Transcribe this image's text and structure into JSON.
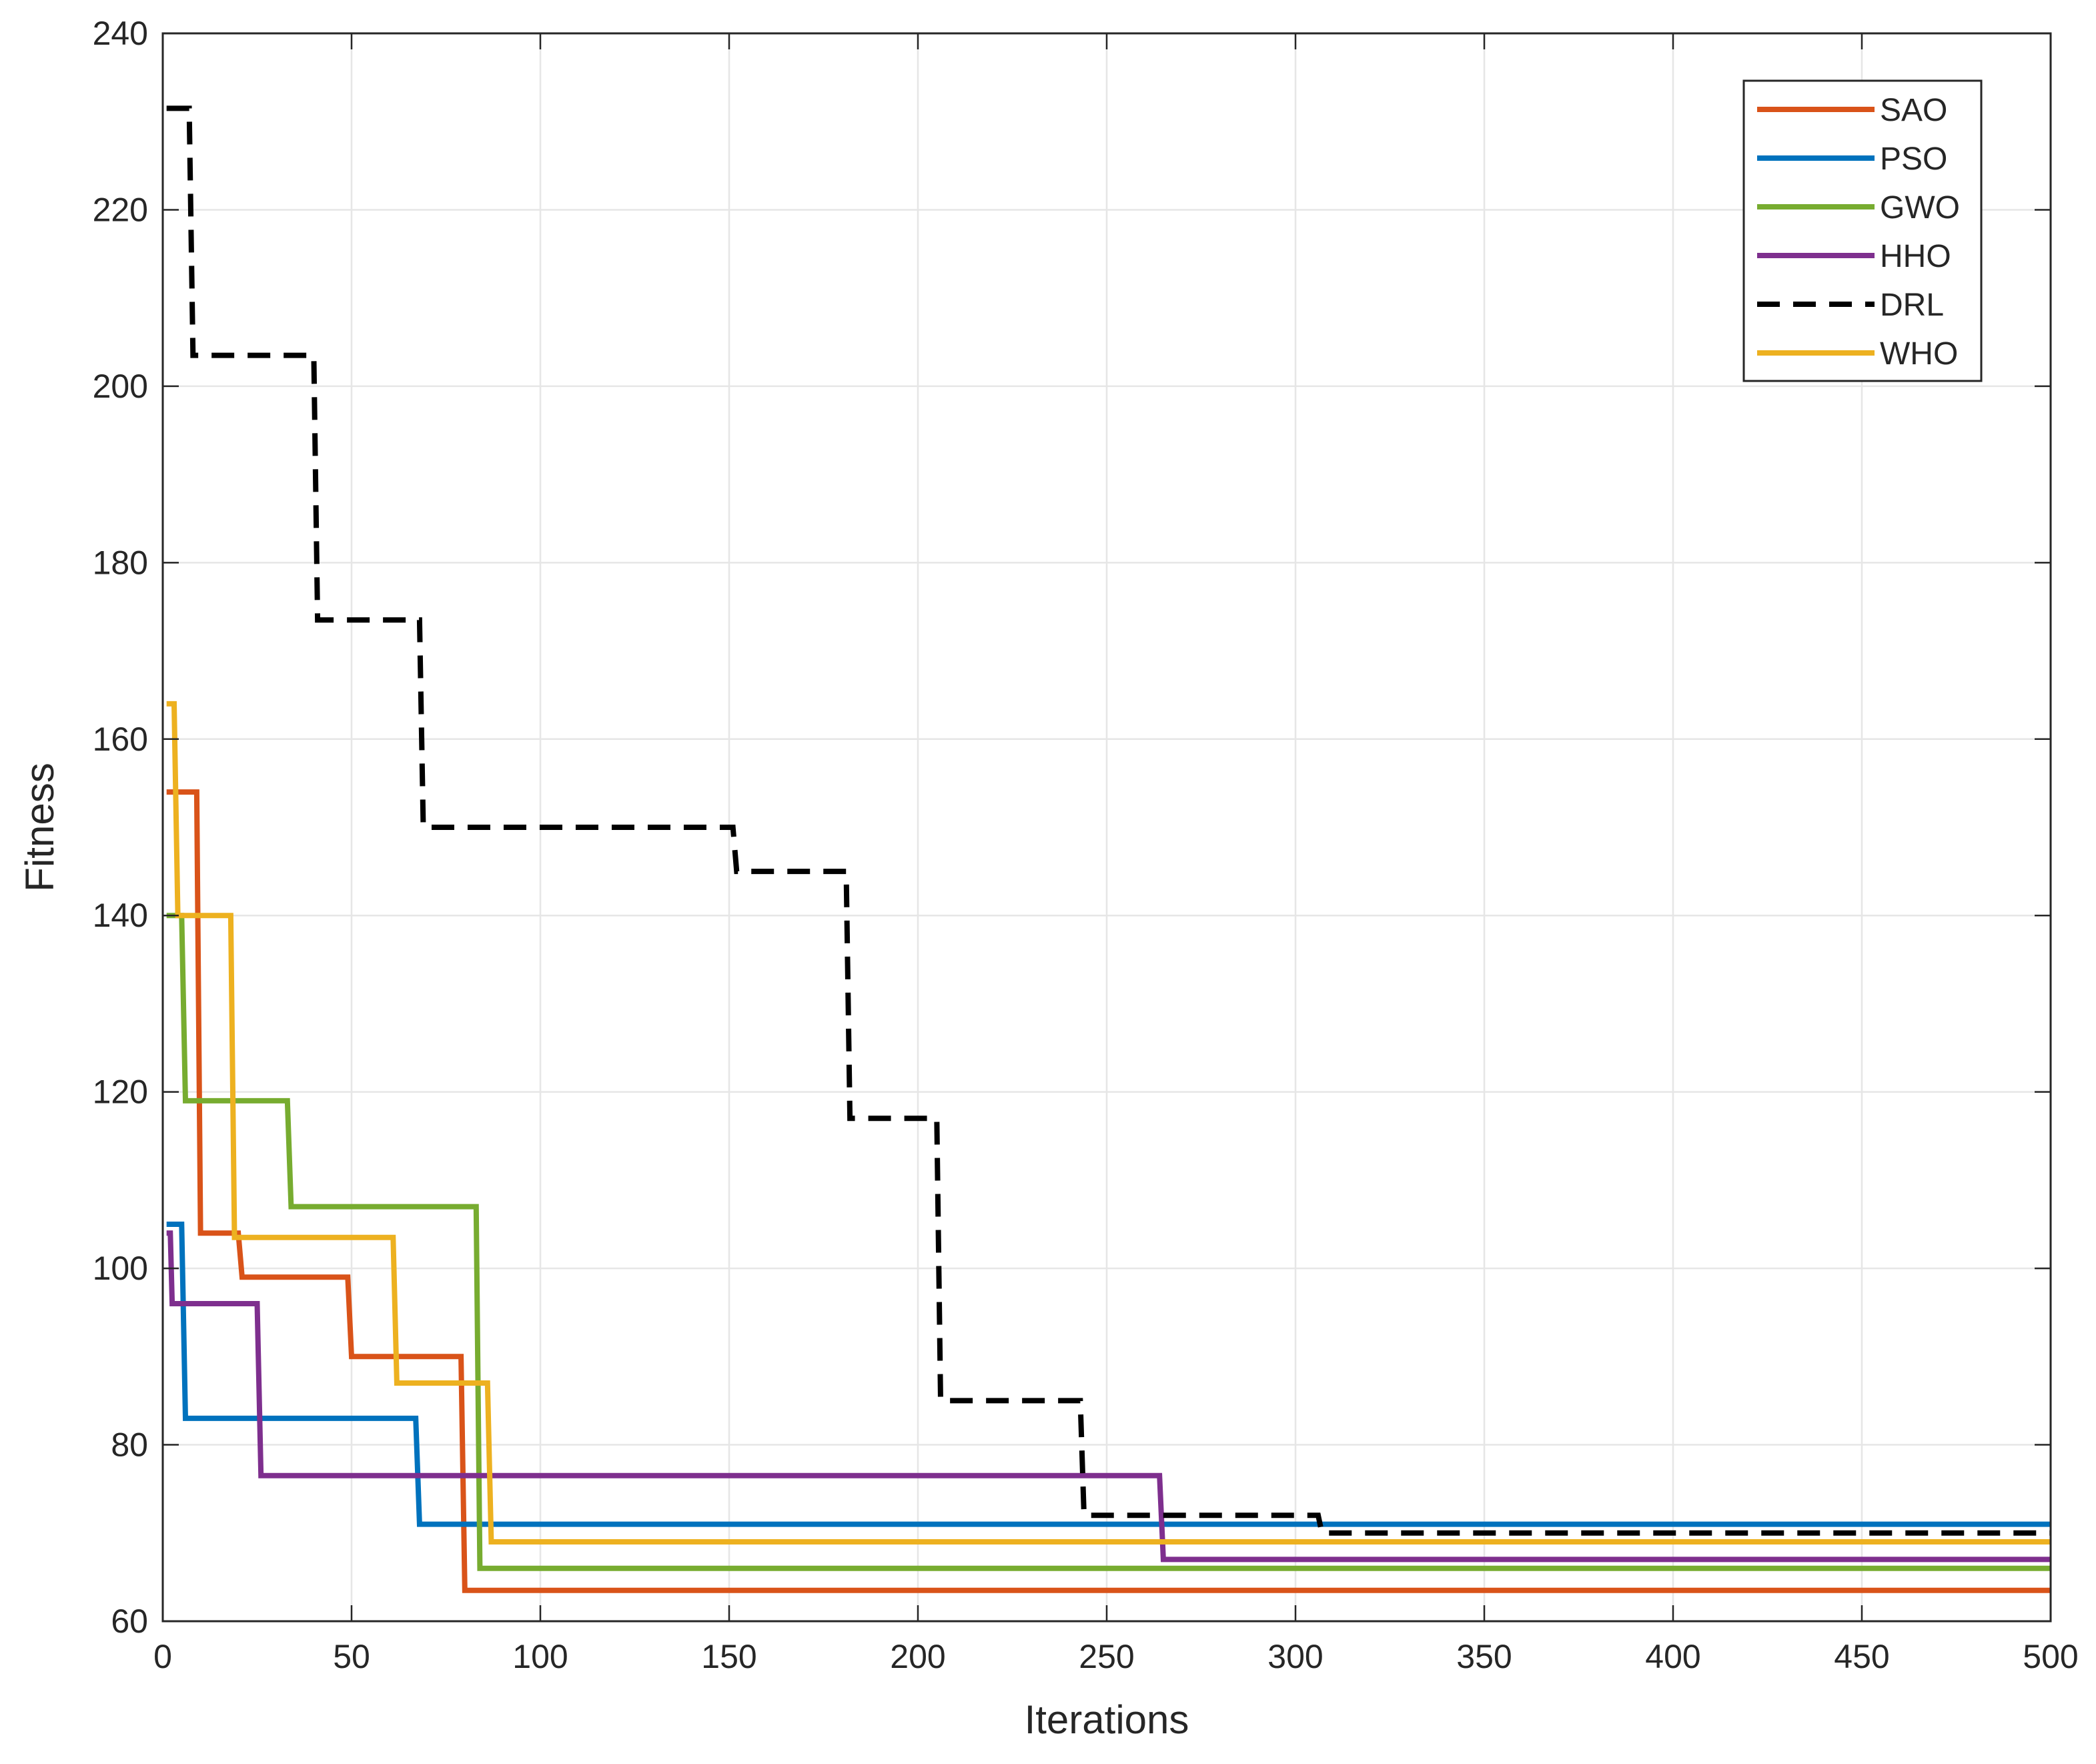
{
  "chart_data": {
    "type": "line",
    "title": "",
    "xlabel": "Iterations",
    "ylabel": "Fitness",
    "xlim": [
      0,
      500
    ],
    "ylim": [
      60,
      240
    ],
    "xticks": [
      0,
      50,
      100,
      150,
      200,
      250,
      300,
      350,
      400,
      450,
      500
    ],
    "yticks": [
      60,
      80,
      100,
      120,
      140,
      160,
      180,
      200,
      220,
      240
    ],
    "grid": true,
    "legend_position": "top-right",
    "series": [
      {
        "name": "SAO",
        "color": "#D95319",
        "dashed": false,
        "points": [
          [
            1,
            154
          ],
          [
            9,
            154
          ],
          [
            10,
            104
          ],
          [
            20,
            104
          ],
          [
            21,
            99
          ],
          [
            49,
            99
          ],
          [
            50,
            90
          ],
          [
            79,
            90
          ],
          [
            80,
            63.5
          ],
          [
            500,
            63.5
          ]
        ]
      },
      {
        "name": "PSO",
        "color": "#0072BD",
        "dashed": false,
        "points": [
          [
            1,
            105
          ],
          [
            5,
            105
          ],
          [
            6,
            83
          ],
          [
            67,
            83
          ],
          [
            68,
            71
          ],
          [
            500,
            71
          ]
        ]
      },
      {
        "name": "GWO",
        "color": "#77AC30",
        "dashed": false,
        "points": [
          [
            1,
            140
          ],
          [
            5,
            140
          ],
          [
            6,
            119
          ],
          [
            33,
            119
          ],
          [
            34,
            107
          ],
          [
            83,
            107
          ],
          [
            84,
            66
          ],
          [
            500,
            66
          ]
        ]
      },
      {
        "name": "HHO",
        "color": "#7E2F8E",
        "dashed": false,
        "points": [
          [
            1,
            104
          ],
          [
            2,
            104
          ],
          [
            2.5,
            96
          ],
          [
            25,
            96
          ],
          [
            26,
            76.5
          ],
          [
            264,
            76.5
          ],
          [
            265,
            67
          ],
          [
            500,
            67
          ]
        ]
      },
      {
        "name": "DRL",
        "color": "#000000",
        "dashed": true,
        "points": [
          [
            1,
            231.5
          ],
          [
            7,
            231.5
          ],
          [
            8,
            203.5
          ],
          [
            40,
            203.5
          ],
          [
            41,
            173.5
          ],
          [
            68,
            173.5
          ],
          [
            69,
            150
          ],
          [
            151,
            150
          ],
          [
            152,
            145
          ],
          [
            181,
            145
          ],
          [
            182,
            117
          ],
          [
            205,
            117
          ],
          [
            206,
            85
          ],
          [
            243,
            85
          ],
          [
            244,
            72
          ],
          [
            306,
            72
          ],
          [
            307,
            70
          ],
          [
            500,
            70
          ]
        ]
      },
      {
        "name": "WHO",
        "color": "#EDB120",
        "dashed": false,
        "points": [
          [
            1,
            164
          ],
          [
            3,
            164
          ],
          [
            4,
            140
          ],
          [
            18,
            140
          ],
          [
            19,
            103.5
          ],
          [
            61,
            103.5
          ],
          [
            62,
            87
          ],
          [
            86,
            87
          ],
          [
            87,
            69
          ],
          [
            500,
            69
          ]
        ]
      }
    ]
  }
}
